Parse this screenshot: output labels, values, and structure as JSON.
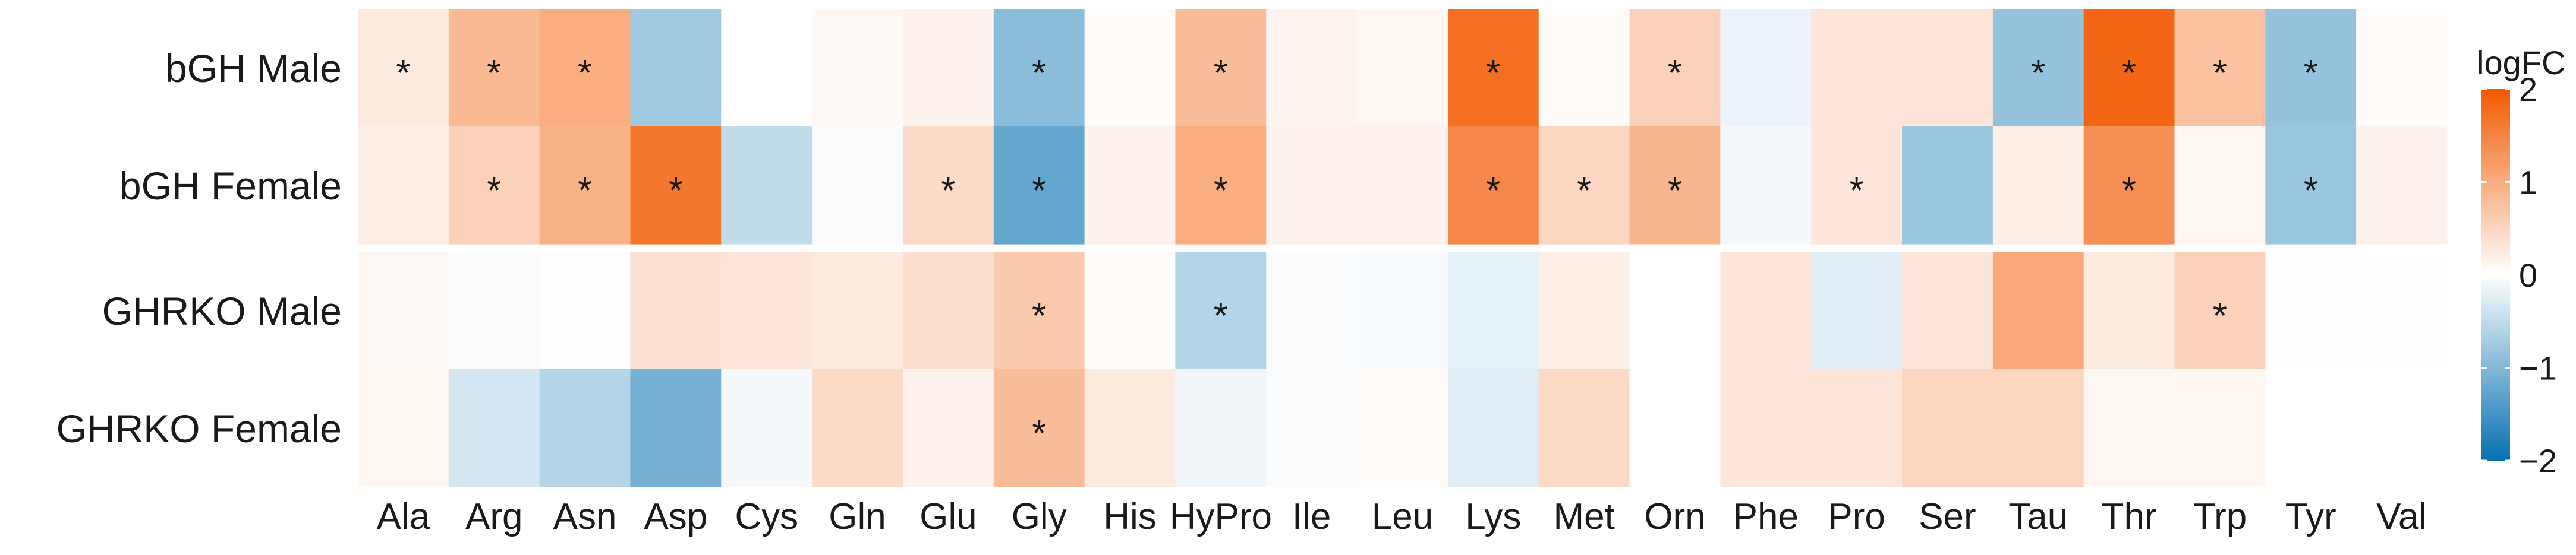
{
  "chart_data": {
    "type": "heatmap",
    "title": "",
    "xlabel": "",
    "ylabel": "",
    "categories": [
      "Ala",
      "Arg",
      "Asn",
      "Asp",
      "Cys",
      "Gln",
      "Glu",
      "Gly",
      "His",
      "HyPro",
      "Ile",
      "Leu",
      "Lys",
      "Met",
      "Orn",
      "Phe",
      "Pro",
      "Ser",
      "Tau",
      "Thr",
      "Trp",
      "Tyr",
      "Val"
    ],
    "groups": [
      {
        "rows": [
          {
            "name": "bGH Male",
            "values": [
              0.25,
              0.85,
              1.0,
              -0.75,
              null,
              0.08,
              0.15,
              -0.95,
              0.05,
              0.8,
              0.12,
              0.1,
              1.75,
              0.05,
              0.55,
              -0.15,
              0.3,
              0.3,
              -0.85,
              1.85,
              0.75,
              -0.85,
              0.05
            ],
            "significant": [
              true,
              true,
              true,
              false,
              false,
              false,
              false,
              true,
              false,
              true,
              false,
              false,
              true,
              false,
              true,
              false,
              false,
              false,
              true,
              true,
              true,
              true,
              false
            ]
          },
          {
            "name": "bGH Female",
            "values": [
              0.2,
              0.55,
              0.95,
              1.65,
              -0.5,
              -0.05,
              0.45,
              -1.25,
              0.15,
              1.0,
              0.15,
              0.15,
              1.45,
              0.5,
              0.9,
              -0.1,
              0.3,
              -0.8,
              0.2,
              1.35,
              0.1,
              -0.8,
              0.15
            ],
            "significant": [
              false,
              true,
              true,
              true,
              false,
              false,
              true,
              true,
              false,
              true,
              false,
              false,
              true,
              true,
              true,
              false,
              true,
              false,
              false,
              true,
              false,
              true,
              false
            ]
          }
        ]
      },
      {
        "rows": [
          {
            "name": "GHRKO Male",
            "values": [
              0.08,
              -0.05,
              -0.03,
              0.35,
              0.3,
              0.25,
              0.4,
              0.65,
              0.05,
              -0.6,
              -0.05,
              -0.06,
              -0.2,
              0.2,
              null,
              0.3,
              -0.25,
              0.3,
              1.05,
              0.25,
              0.55,
              -0.02,
              -0.02
            ],
            "significant": [
              false,
              false,
              false,
              false,
              false,
              false,
              false,
              true,
              false,
              true,
              false,
              false,
              false,
              false,
              false,
              false,
              false,
              false,
              false,
              false,
              true,
              false,
              false
            ]
          },
          {
            "name": "GHRKO Female",
            "values": [
              0.1,
              -0.35,
              -0.6,
              -1.1,
              -0.08,
              0.45,
              0.15,
              0.8,
              0.25,
              -0.12,
              -0.05,
              0.05,
              -0.25,
              0.45,
              null,
              0.3,
              0.3,
              0.5,
              0.5,
              0.1,
              0.1,
              null,
              null
            ],
            "significant": [
              false,
              false,
              false,
              false,
              false,
              false,
              false,
              true,
              false,
              false,
              false,
              false,
              false,
              false,
              false,
              false,
              false,
              false,
              false,
              false,
              false,
              false,
              false
            ]
          }
        ]
      }
    ],
    "significance_marker": "*",
    "legend": {
      "title": "logFC",
      "min": -2,
      "max": 2,
      "ticks": [
        2,
        1,
        0,
        -1,
        -2
      ],
      "tick_labels": [
        "2",
        "1",
        "0",
        "−1",
        "−2"
      ],
      "placement": "right",
      "colors": {
        "low": "#0571b0",
        "mid": "#ffffff",
        "high": "#f25a02"
      }
    }
  }
}
